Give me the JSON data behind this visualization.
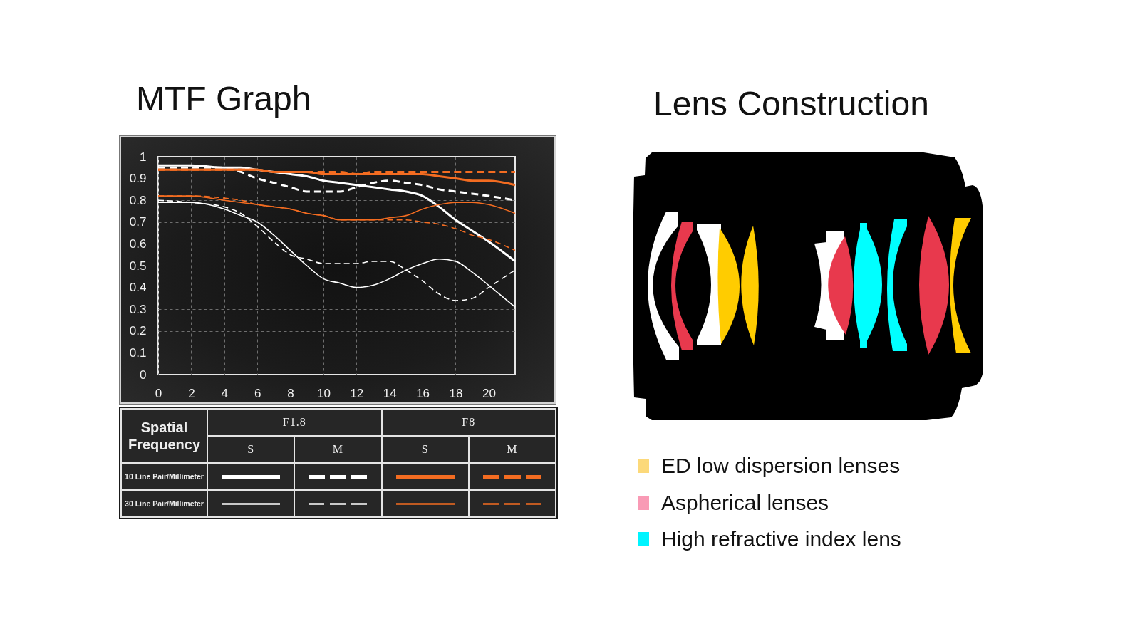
{
  "chart_data": [
    {
      "type": "line",
      "title": "MTF Graph",
      "x": [
        0,
        2,
        4,
        5,
        6,
        7,
        8,
        9,
        10,
        11,
        12,
        13,
        14,
        15,
        16,
        17,
        18,
        19,
        20,
        21.6
      ],
      "xlim": [
        0,
        21.6
      ],
      "xticks": [
        0,
        2,
        4,
        6,
        8,
        10,
        12,
        14,
        16,
        18,
        20
      ],
      "ylim": [
        0,
        1
      ],
      "yticks": [
        0,
        0.1,
        0.2,
        0.3,
        0.4,
        0.5,
        0.6,
        0.7,
        0.8,
        0.9,
        1
      ],
      "grid": true,
      "series": [
        {
          "color": "#ffffff",
          "line_style": "solid",
          "values": [
            0.96,
            0.96,
            0.95,
            0.95,
            0.94,
            0.93,
            0.92,
            0.91,
            0.89,
            0.88,
            0.87,
            0.86,
            0.85,
            0.84,
            0.82,
            0.77,
            0.71,
            0.66,
            0.61,
            0.52
          ]
        },
        {
          "color": "#ffffff",
          "line_style": "dashed",
          "values": [
            0.95,
            0.95,
            0.95,
            0.93,
            0.9,
            0.88,
            0.86,
            0.84,
            0.84,
            0.84,
            0.86,
            0.88,
            0.89,
            0.88,
            0.87,
            0.85,
            0.84,
            0.83,
            0.82,
            0.8
          ]
        },
        {
          "color": "#f36c21",
          "line_style": "solid",
          "values": [
            0.94,
            0.94,
            0.94,
            0.94,
            0.94,
            0.93,
            0.93,
            0.93,
            0.92,
            0.92,
            0.92,
            0.92,
            0.92,
            0.92,
            0.92,
            0.91,
            0.9,
            0.89,
            0.89,
            0.87
          ]
        },
        {
          "color": "#f36c21",
          "line_style": "dashed",
          "values": [
            0.94,
            0.94,
            0.94,
            0.94,
            0.94,
            0.93,
            0.93,
            0.93,
            0.93,
            0.93,
            0.92,
            0.93,
            0.93,
            0.93,
            0.93,
            0.93,
            0.93,
            0.93,
            0.93,
            0.93
          ]
        },
        {
          "color": "#ffffff",
          "line_style": "solid",
          "values": [
            0.79,
            0.79,
            0.76,
            0.73,
            0.7,
            0.64,
            0.57,
            0.5,
            0.44,
            0.42,
            0.4,
            0.41,
            0.44,
            0.48,
            0.51,
            0.53,
            0.52,
            0.47,
            0.41,
            0.31
          ]
        },
        {
          "color": "#ffffff",
          "line_style": "dashed",
          "values": [
            0.8,
            0.79,
            0.77,
            0.74,
            0.68,
            0.61,
            0.55,
            0.53,
            0.51,
            0.51,
            0.51,
            0.52,
            0.52,
            0.48,
            0.43,
            0.37,
            0.34,
            0.35,
            0.4,
            0.48
          ]
        },
        {
          "color": "#f36c21",
          "line_style": "solid",
          "values": [
            0.82,
            0.82,
            0.8,
            0.79,
            0.78,
            0.77,
            0.76,
            0.74,
            0.73,
            0.71,
            0.71,
            0.71,
            0.72,
            0.73,
            0.76,
            0.78,
            0.79,
            0.79,
            0.78,
            0.74
          ]
        },
        {
          "color": "#f36c21",
          "line_style": "dashed",
          "values": [
            0.82,
            0.82,
            0.81,
            0.8,
            0.78,
            0.77,
            0.76,
            0.74,
            0.73,
            0.71,
            0.71,
            0.71,
            0.71,
            0.71,
            0.7,
            0.69,
            0.67,
            0.64,
            0.62,
            0.57
          ]
        }
      ],
      "annotations": [
        "Spatial Frequency",
        "F1.8",
        "F8",
        "S",
        "M",
        "S",
        "M",
        "10 Line Pair/Millimeter",
        "30 Line Pair/Millimeter"
      ]
    },
    {
      "type": "other",
      "title": "Lens Construction",
      "annotations": [
        "ED low dispersion lenses",
        "Aspherical lenses",
        "High refractive index lens"
      ]
    }
  ]
}
